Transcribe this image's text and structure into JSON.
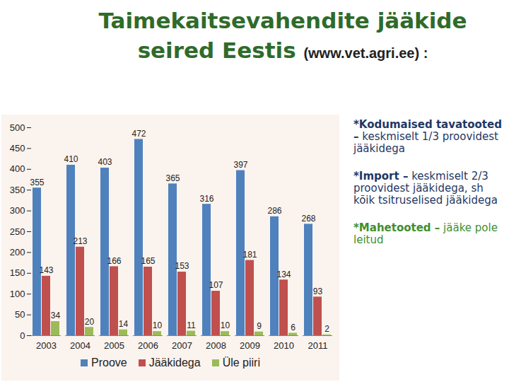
{
  "chart_data": {
    "type": "bar",
    "title": "Taimekaitsevahendite jääkide seired Eestis",
    "subtitle": "(www.vet.agri.ee) :",
    "categories": [
      "2003",
      "2004",
      "2005",
      "2006",
      "2007",
      "2008",
      "2009",
      "2010",
      "2011"
    ],
    "series": [
      {
        "name": "Proove",
        "color": "#4f81bd",
        "values": [
          355,
          410,
          403,
          472,
          365,
          316,
          397,
          286,
          268
        ]
      },
      {
        "name": "Jääkidega",
        "color": "#c0504d",
        "values": [
          143,
          213,
          166,
          165,
          153,
          107,
          181,
          134,
          93
        ]
      },
      {
        "name": "Üle piiri",
        "color": "#9bbb59",
        "values": [
          34,
          20,
          14,
          10,
          11,
          10,
          9,
          6,
          2
        ]
      }
    ],
    "ylim": [
      0,
      500
    ],
    "yticks": [
      0,
      50,
      100,
      150,
      200,
      250,
      300,
      350,
      400,
      450,
      500
    ],
    "grid": false,
    "data_labels": true,
    "legend": "bottom",
    "annotations": [
      {
        "bold": "*Kodumaised tavatooted –",
        "text": "keskmiselt 1/3 proovidest jääkidega"
      },
      {
        "bold": "*Import –",
        "text": "keskmiselt 2/3 proovidest jääkidega, sh kõik tsitruselised jääkidega"
      },
      {
        "bold": "*Mahetooted –",
        "text": "jääke pole leitud"
      }
    ]
  }
}
